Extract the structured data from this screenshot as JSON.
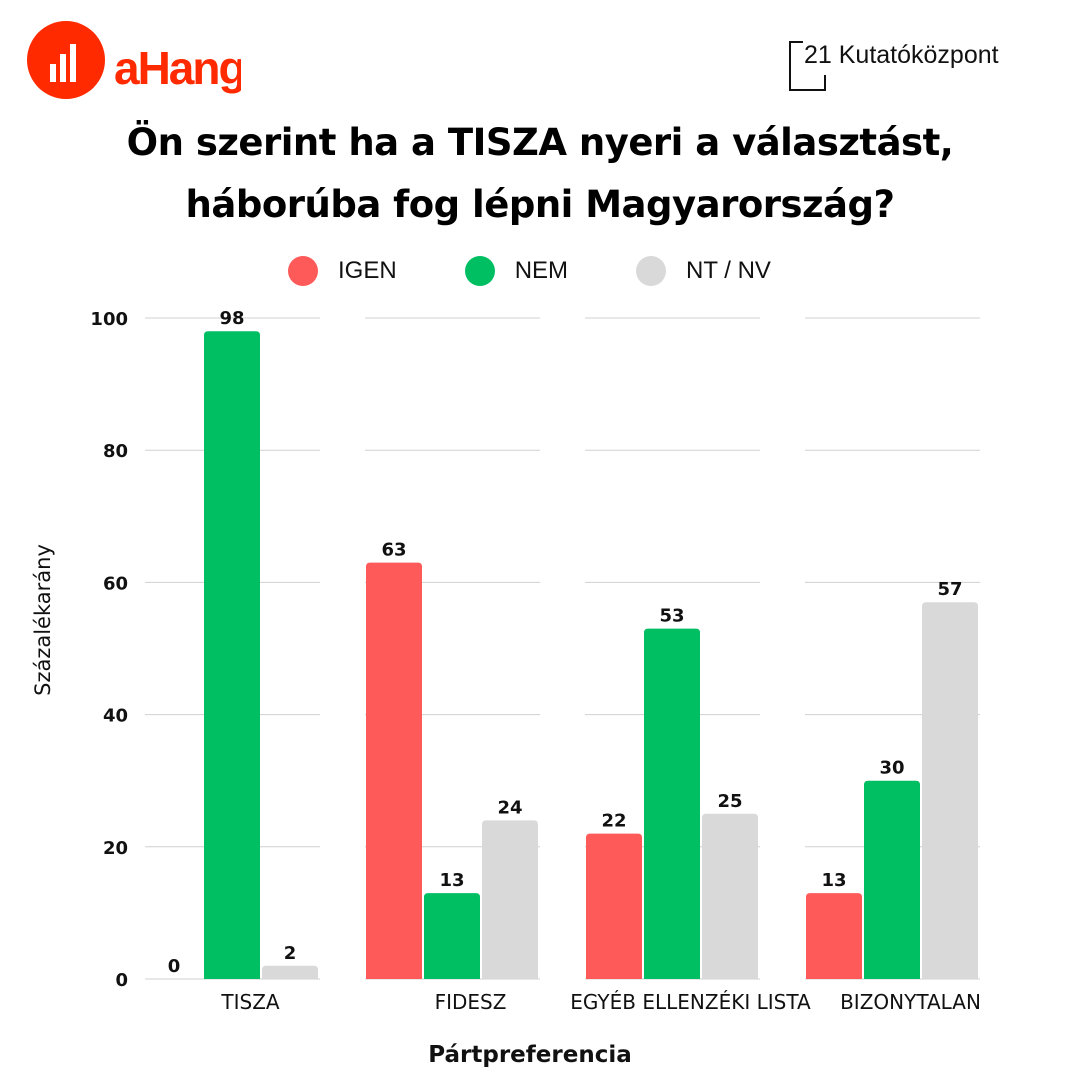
{
  "logos": {
    "left": "aHang",
    "right": "21 Kutatóközpont"
  },
  "chart_data": {
    "type": "bar",
    "title": "Ön szerint ha a TISZA nyeri a választást, háborúba fog lépni Magyarország?",
    "title_lines": [
      "Ön szerint ha a TISZA nyeri a választást,",
      "háborúba fog lépni Magyarország?"
    ],
    "categories": [
      "TISZA",
      "FIDESZ",
      "EGYÉB ELLENZÉKI LISTA",
      "BIZONYTALAN"
    ],
    "series": [
      {
        "name": "IGEN",
        "color": "#ff5a5a",
        "values": [
          0,
          63,
          22,
          13
        ]
      },
      {
        "name": "NEM",
        "color": "#00bf63",
        "values": [
          98,
          13,
          53,
          30
        ]
      },
      {
        "name": "NT / NV",
        "color": "#d9d9d9",
        "values": [
          2,
          24,
          25,
          57
        ]
      }
    ],
    "xlabel": "Pártpreferencia",
    "ylabel": "Százalékarány",
    "ylim": [
      0,
      100
    ],
    "yticks": [
      0,
      20,
      40,
      60,
      80,
      100
    ],
    "grid": true,
    "legend": "top-center"
  }
}
